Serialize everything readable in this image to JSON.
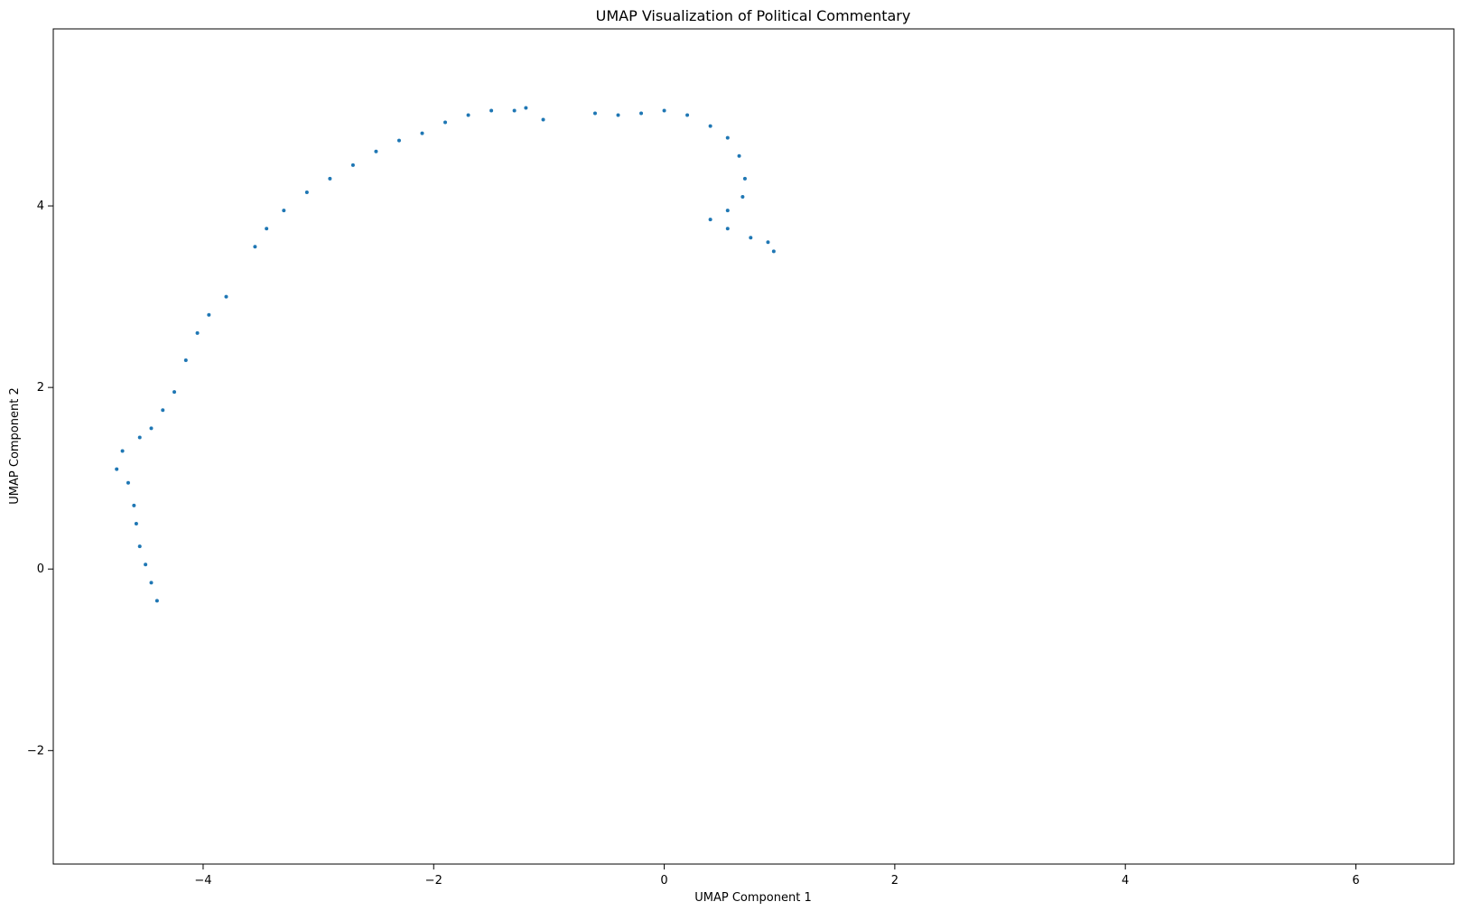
{
  "chart_data": {
    "type": "scatter",
    "title": "UMAP Visualization of Political Commentary",
    "xlabel": "UMAP Component 1",
    "ylabel": "UMAP Component 2",
    "xlim": [
      -5.3,
      6.85
    ],
    "ylim": [
      -3.25,
      5.95
    ],
    "xticks": [
      -4,
      -2,
      0,
      2,
      4,
      6
    ],
    "xtick_labels": [
      "−4",
      "−2",
      "0",
      "2",
      "4",
      "6"
    ],
    "yticks": [
      -2,
      0,
      2,
      4
    ],
    "ytick_labels": [
      "−2",
      "0",
      "2",
      "4"
    ],
    "grid": false,
    "legend": "none",
    "marker_color": "#1f77b4",
    "marker_size": 2,
    "point_count_note": "approximate cluster-based reconstruction",
    "series": [
      {
        "values": [
          [
            -4.75,
            1.1
          ],
          [
            -4.7,
            1.3
          ],
          [
            -4.65,
            0.95
          ],
          [
            -4.6,
            0.7
          ],
          [
            -4.58,
            0.5
          ],
          [
            -4.55,
            0.25
          ],
          [
            -4.5,
            0.05
          ],
          [
            -4.45,
            -0.15
          ],
          [
            -4.4,
            -0.35
          ],
          [
            -4.55,
            1.45
          ],
          [
            -4.45,
            1.55
          ],
          [
            -4.35,
            1.75
          ],
          [
            -4.25,
            1.95
          ],
          [
            -4.15,
            2.3
          ],
          [
            -4.05,
            2.6
          ],
          [
            -3.95,
            2.8
          ],
          [
            -3.8,
            3.0
          ],
          [
            -3.55,
            3.55
          ],
          [
            -3.45,
            3.75
          ],
          [
            -3.3,
            3.95
          ],
          [
            -3.1,
            4.15
          ],
          [
            -2.9,
            4.3
          ],
          [
            -2.7,
            4.45
          ],
          [
            -2.5,
            4.6
          ],
          [
            -2.3,
            4.72
          ],
          [
            -2.1,
            4.8
          ],
          [
            -1.9,
            4.92
          ],
          [
            -1.7,
            5.0
          ],
          [
            -1.5,
            5.05
          ],
          [
            -1.3,
            5.05
          ],
          [
            -1.2,
            5.08
          ],
          [
            -1.05,
            4.95
          ],
          [
            -0.6,
            5.02
          ],
          [
            -0.4,
            5.0
          ],
          [
            -0.2,
            5.02
          ],
          [
            0.0,
            5.05
          ],
          [
            0.2,
            5.0
          ],
          [
            0.4,
            4.88
          ],
          [
            0.55,
            4.75
          ],
          [
            0.65,
            4.55
          ],
          [
            0.7,
            4.3
          ],
          [
            0.68,
            4.1
          ],
          [
            0.55,
            3.95
          ],
          [
            0.4,
            3.85
          ],
          [
            0.55,
            3.75
          ],
          [
            0.75,
            3.65
          ],
          [
            0.9,
            3.6
          ],
          [
            0.95,
            3.5
          ]
        ]
      }
    ]
  }
}
